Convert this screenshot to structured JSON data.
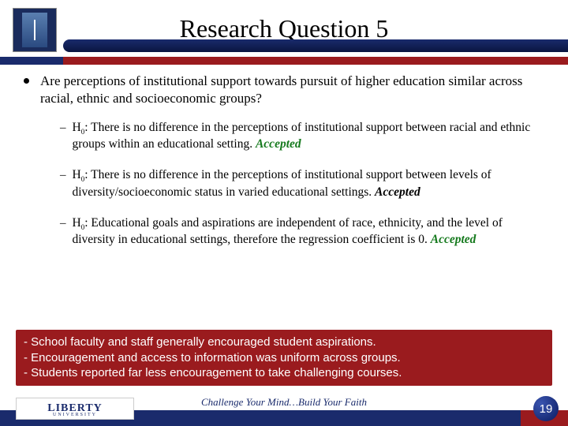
{
  "title": "Research Question 5",
  "main_question": "Are perceptions of institutional support towards pursuit of higher education similar across racial, ethnic and socioeconomic groups?",
  "hypotheses": [
    {
      "label": "H",
      "sub": "0",
      "text": ": There is no difference in the perceptions of institutional support between racial and ethnic groups within an educational setting.",
      "result": "Accepted",
      "result_color": "#167a1e"
    },
    {
      "label": "H",
      "sub": "0",
      "text": ": There is no difference in the perceptions of institutional support between levels of diversity/socioeconomic status in varied educational settings.",
      "result": "Accepted",
      "result_color": "#000000"
    },
    {
      "label": "H",
      "sub": "0",
      "text": ": Educational goals and aspirations are independent of race, ethnicity, and the level of diversity in educational settings, therefore the regression coefficient is 0.",
      "result": "Accepted",
      "result_color": "#167a1e"
    }
  ],
  "findings": [
    "- School faculty and staff generally encouraged student aspirations.",
    "- Encouragement and access to information was uniform across groups.",
    "- Students reported far less encouragement to take challenging courses."
  ],
  "logo_text": "LIBERTY",
  "logo_sub": "UNIVERSITY",
  "tagline": "Challenge Your Mind…Build Your Faith",
  "page_number": "19",
  "colors": {
    "navy": "#1a2b6c",
    "red": "#9a1b1e",
    "green": "#167a1e"
  }
}
